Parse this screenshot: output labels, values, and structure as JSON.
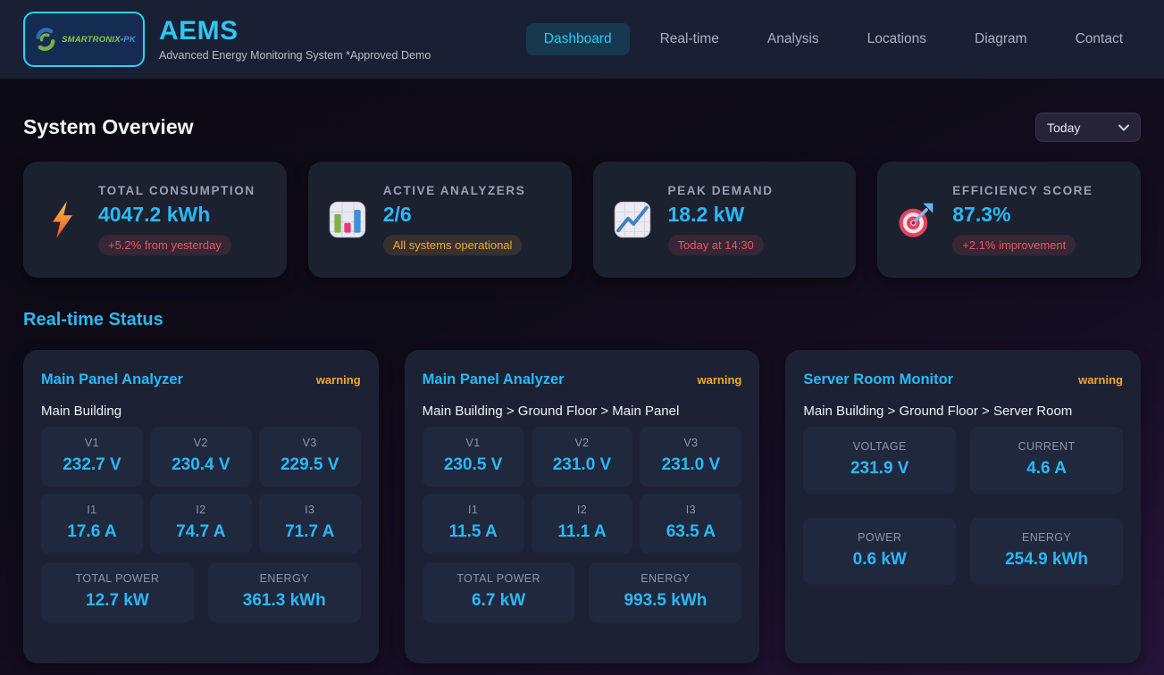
{
  "header": {
    "logo": {
      "brand": "SMARTRONIX",
      "suffix": "•PK"
    },
    "title": "AEMS",
    "subtitle": "Advanced Energy Monitoring System *Approved Demo",
    "nav": [
      {
        "label": "Dashboard",
        "active": true
      },
      {
        "label": "Real-time",
        "active": false
      },
      {
        "label": "Analysis",
        "active": false
      },
      {
        "label": "Locations",
        "active": false
      },
      {
        "label": "Diagram",
        "active": false
      },
      {
        "label": "Contact",
        "active": false
      }
    ]
  },
  "overview": {
    "title": "System Overview",
    "period_selector": {
      "value": "Today"
    },
    "stats": [
      {
        "icon": "lightning-icon",
        "label": "TOTAL CONSUMPTION",
        "value": "4047.2 kWh",
        "badge": "+5.2% from yesterday",
        "badge_type": "red"
      },
      {
        "icon": "bar-chart-icon",
        "label": "ACTIVE ANALYZERS",
        "value": "2/6",
        "badge": "All systems operational",
        "badge_type": "orange"
      },
      {
        "icon": "chart-increasing-icon",
        "label": "PEAK DEMAND",
        "value": "18.2 kW",
        "badge": "Today at 14:30",
        "badge_type": "red"
      },
      {
        "icon": "target-icon",
        "label": "EFFICIENCY SCORE",
        "value": "87.3%",
        "badge": "+2.1% improvement",
        "badge_type": "red"
      }
    ]
  },
  "realtime": {
    "title": "Real-time Status",
    "panels": [
      {
        "name": "Main Panel Analyzer",
        "status": "warning",
        "location": "Main Building",
        "phase_metrics": [
          {
            "label": "V1",
            "value": "232.7 V"
          },
          {
            "label": "V2",
            "value": "230.4 V"
          },
          {
            "label": "V3",
            "value": "229.5 V"
          },
          {
            "label": "I1",
            "value": "17.6 A"
          },
          {
            "label": "I2",
            "value": "74.7 A"
          },
          {
            "label": "I3",
            "value": "71.7 A"
          }
        ],
        "summary_metrics": [
          {
            "label": "TOTAL POWER",
            "value": "12.7 kW"
          },
          {
            "label": "ENERGY",
            "value": "361.3 kWh"
          }
        ]
      },
      {
        "name": "Main Panel Analyzer",
        "status": "warning",
        "location": "Main Building > Ground Floor > Main Panel",
        "phase_metrics": [
          {
            "label": "V1",
            "value": "230.5 V"
          },
          {
            "label": "V2",
            "value": "231.0 V"
          },
          {
            "label": "V3",
            "value": "231.0 V"
          },
          {
            "label": "I1",
            "value": "11.5 A"
          },
          {
            "label": "I2",
            "value": "11.1 A"
          },
          {
            "label": "I3",
            "value": "63.5 A"
          }
        ],
        "summary_metrics": [
          {
            "label": "TOTAL POWER",
            "value": "6.7 kW"
          },
          {
            "label": "ENERGY",
            "value": "993.5 kWh"
          }
        ]
      },
      {
        "name": "Server Room Monitor",
        "status": "warning",
        "location": "Main Building > Ground Floor > Server Room",
        "phase_metrics": [],
        "summary_metrics": [
          {
            "label": "VOLTAGE",
            "value": "231.9 V"
          },
          {
            "label": "CURRENT",
            "value": "4.6 A"
          },
          {
            "label": "POWER",
            "value": "0.6 kW"
          },
          {
            "label": "ENERGY",
            "value": "254.9 kWh"
          }
        ]
      }
    ]
  },
  "colors": {
    "accent_cyan": "#2ab9f5",
    "warning_orange": "#f6a72b",
    "danger_red": "#f0525f",
    "header_bg": "#1a2033",
    "card_bg": "#1c2130",
    "tile_bg": "#20283e"
  }
}
